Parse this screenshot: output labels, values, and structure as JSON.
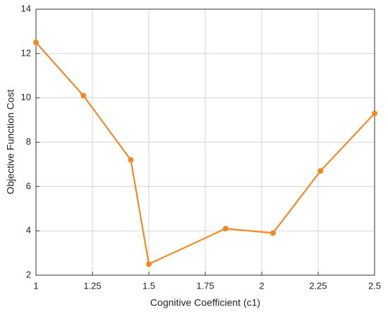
{
  "chart_data": {
    "type": "line",
    "x_label": "Cognitive Coefficient (c1)",
    "y_label": "Objective Function Cost",
    "x": [
      1,
      1.21,
      1.42,
      1.5,
      1.84,
      2.05,
      2.26,
      2.5
    ],
    "series": [
      {
        "color": "#f08a24",
        "values": [
          12.5,
          10.1,
          7.2,
          2.5,
          4.1,
          3.9,
          6.7,
          9.3
        ]
      }
    ],
    "xlim": [
      1,
      2.5
    ],
    "xticks": [
      1,
      1.25,
      1.5,
      1.75,
      2,
      2.25,
      2.5
    ],
    "ylim": [
      2,
      14
    ],
    "yticks": [
      2,
      4,
      6,
      8,
      10,
      12,
      14
    ],
    "grid": true
  }
}
